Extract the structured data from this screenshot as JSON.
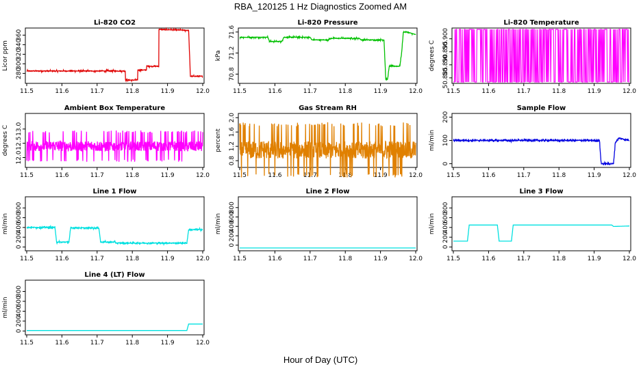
{
  "title": "RBA_120125  1 Hz Diagnostics Zoomed AM",
  "xlabel": "Hour of Day (UTC)",
  "chart_data": [
    {
      "type": "line",
      "title": "Li-820 CO2",
      "ylabel": "Licor ppm",
      "color": "#e00000",
      "xlim": [
        11.5,
        12.0
      ],
      "ylim": [
        262,
        372
      ],
      "xticks": [
        "11.5",
        "11.6",
        "11.7",
        "11.8",
        "11.9",
        "12.0"
      ],
      "yticks": [
        "280",
        "300",
        "320",
        "340",
        "360"
      ],
      "noise": 1,
      "series": [
        {
          "x": [
            11.5,
            11.78,
            11.78,
            11.785,
            11.785,
            11.815,
            11.815,
            11.84,
            11.84,
            11.875,
            11.875,
            11.96,
            11.96,
            11.965,
            11.965,
            12.0
          ],
          "y": [
            285,
            285,
            266,
            266,
            266,
            266,
            287,
            287,
            295,
            295,
            372,
            370,
            370,
            274,
            274,
            274
          ]
        }
      ]
    },
    {
      "type": "line",
      "title": "Li-820 Pressure",
      "ylabel": "kPa",
      "color": "#00c000",
      "xlim": [
        11.5,
        12.0
      ],
      "ylim": [
        70.65,
        71.65
      ],
      "xticks": [
        "11.5",
        "11.6",
        "11.7",
        "11.8",
        "11.9",
        "12.0"
      ],
      "yticks": [
        "70.8",
        "71.2",
        "71.6"
      ],
      "noise": 0.008,
      "series": [
        {
          "x": [
            11.5,
            11.58,
            11.585,
            11.62,
            11.625,
            11.7,
            11.705,
            11.75,
            11.76,
            11.84,
            11.845,
            11.91,
            11.915,
            11.92,
            11.925,
            11.955,
            11.96,
            11.965,
            11.975,
            12.0
          ],
          "y": [
            71.5,
            71.5,
            71.42,
            71.42,
            71.5,
            71.5,
            71.45,
            71.45,
            71.48,
            71.48,
            71.45,
            71.45,
            70.7,
            70.7,
            70.95,
            70.95,
            71.2,
            71.6,
            71.6,
            71.55
          ]
        }
      ]
    },
    {
      "type": "line",
      "title": "Li-820 Temperature",
      "ylabel": "degrees C",
      "color": "#ff00ff",
      "xlim": [
        11.5,
        12.0
      ],
      "ylim": [
        50.8834,
        50.9036
      ],
      "xticks": [
        "11.5",
        "11.6",
        "11.7",
        "11.8",
        "11.9",
        "12.0"
      ],
      "yticks": [
        "50.885",
        "50.890",
        "50.895",
        "50.900"
      ],
      "noise": 0,
      "series": [
        {
          "x": [
            11.5,
            12.0
          ],
          "y": [
            50.8834,
            50.9036
          ],
          "mode": "flip"
        }
      ]
    },
    {
      "type": "line",
      "title": "Ambient Box Temperature",
      "ylabel": "degrees C",
      "color": "#ff00ff",
      "xlim": [
        11.5,
        12.0
      ],
      "ylim": [
        11.7,
        13.5
      ],
      "xticks": [
        "11.5",
        "11.6",
        "11.7",
        "11.8",
        "11.9",
        "12.0"
      ],
      "yticks": [
        "12.0",
        "12.5",
        "13.0"
      ],
      "noise": 0.25,
      "series": [
        {
          "x": [
            11.5,
            12.0
          ],
          "y": [
            12.4,
            12.4
          ]
        }
      ]
    },
    {
      "type": "line",
      "title": "Gas Stream RH",
      "ylabel": "percent",
      "color": "#e08000",
      "xlim": [
        11.5,
        12.0
      ],
      "ylim": [
        0.65,
        2.08
      ],
      "xticks": [
        "11.5",
        "11.6",
        "11.7",
        "11.8",
        "11.9",
        "12.0"
      ],
      "yticks": [
        "0.8",
        "1.2",
        "1.6",
        "2.0"
      ],
      "noise": 0.35,
      "series": [
        {
          "x": [
            11.5,
            12.0
          ],
          "y": [
            1.1,
            1.1
          ]
        }
      ]
    },
    {
      "type": "line",
      "title": "Sample Flow",
      "ylabel": "ml/min",
      "color": "#0000e0",
      "xlim": [
        11.5,
        12.0
      ],
      "ylim": [
        -10,
        210
      ],
      "xticks": [
        "11.5",
        "11.6",
        "11.7",
        "11.8",
        "11.9",
        "12.0"
      ],
      "yticks": [
        "0",
        "100",
        "200"
      ],
      "noise": 3,
      "series": [
        {
          "x": [
            11.5,
            11.915,
            11.92,
            11.955,
            11.96,
            11.97,
            12.0
          ],
          "y": [
            100,
            100,
            0,
            0,
            90,
            110,
            100
          ]
        }
      ]
    },
    {
      "type": "line",
      "title": "Line 1 Flow",
      "ylabel": "ml/min",
      "color": "#00e0e0",
      "xlim": [
        11.5,
        12.0
      ],
      "ylim": [
        -50,
        1000
      ],
      "xticks": [
        "11.5",
        "11.6",
        "11.7",
        "11.8",
        "11.9",
        "12.0"
      ],
      "yticks": [
        "0",
        "200",
        "400",
        "600",
        "800"
      ],
      "noise": 12,
      "series": [
        {
          "x": [
            11.5,
            11.58,
            11.585,
            11.62,
            11.625,
            11.705,
            11.71,
            11.75,
            11.755,
            11.955,
            11.96,
            12.0
          ],
          "y": [
            400,
            400,
            100,
            100,
            390,
            390,
            100,
            100,
            80,
            80,
            350,
            360
          ]
        }
      ]
    },
    {
      "type": "line",
      "title": "Line 2 Flow",
      "ylabel": "ml/min",
      "color": "#00e0e0",
      "xlim": [
        11.5,
        12.0
      ],
      "ylim": [
        -90,
        1000
      ],
      "xticks": [
        "11.5",
        "11.6",
        "11.7",
        "11.8",
        "11.9",
        "12.0"
      ],
      "yticks": [
        "0",
        "200",
        "400",
        "600",
        "800"
      ],
      "noise": 0,
      "series": [
        {
          "x": [
            11.5,
            12.0
          ],
          "y": [
            -60,
            -60
          ]
        }
      ]
    },
    {
      "type": "line",
      "title": "Line 3 Flow",
      "ylabel": "ml/min",
      "color": "#00e0e0",
      "xlim": [
        11.5,
        12.0
      ],
      "ylim": [
        -50,
        1000
      ],
      "xticks": [
        "11.5",
        "11.6",
        "11.7",
        "11.8",
        "11.9",
        "12.0"
      ],
      "yticks": [
        "0",
        "200",
        "400",
        "600",
        "800"
      ],
      "noise": 0,
      "series": [
        {
          "x": [
            11.5,
            11.54,
            11.545,
            11.625,
            11.63,
            11.665,
            11.67,
            11.95,
            11.955,
            12.0
          ],
          "y": [
            120,
            120,
            450,
            450,
            120,
            120,
            450,
            450,
            420,
            430
          ]
        }
      ]
    },
    {
      "type": "line",
      "title": "Line 4 (LT) Flow",
      "ylabel": "ml/min",
      "color": "#00e0e0",
      "xlim": [
        11.5,
        12.0
      ],
      "ylim": [
        -50,
        1000
      ],
      "xticks": [
        "11.5",
        "11.6",
        "11.7",
        "11.8",
        "11.9",
        "12.0"
      ],
      "yticks": [
        "0",
        "200",
        "400",
        "600",
        "800"
      ],
      "noise": 0,
      "series": [
        {
          "x": [
            11.5,
            11.955,
            11.96,
            12.0
          ],
          "y": [
            10,
            10,
            140,
            140
          ]
        }
      ]
    }
  ]
}
